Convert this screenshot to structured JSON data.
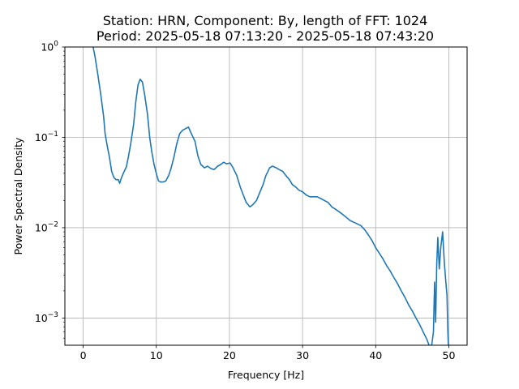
{
  "chart_data": {
    "type": "line",
    "title": "Station: HRN, Component: By, length of FFT: 1024",
    "subtitle": "Period: 2025-05-18 07:13:20 - 2025-05-18 07:43:20",
    "xlabel": "Frequency [Hz]",
    "ylabel": "Power Spectral Density",
    "xlim": [
      -2.5,
      52.5
    ],
    "ylim": [
      0.0005,
      1
    ],
    "yscale": "log",
    "grid": true,
    "x_ticks": [
      0,
      10,
      20,
      30,
      40,
      50
    ],
    "y_ticks": [
      {
        "value": 0.001,
        "base": "10",
        "exp": "−3"
      },
      {
        "value": 0.01,
        "base": "10",
        "exp": "−2"
      },
      {
        "value": 0.1,
        "base": "10",
        "exp": "−1"
      },
      {
        "value": 1,
        "base": "10",
        "exp": "0"
      }
    ],
    "series": [
      {
        "color": "#1f77b4",
        "points": [
          [
            1.3,
            1.05
          ],
          [
            1.6,
            0.8
          ],
          [
            2.0,
            0.5
          ],
          [
            2.4,
            0.3
          ],
          [
            2.8,
            0.17
          ],
          [
            3.0,
            0.11
          ],
          [
            3.3,
            0.08
          ],
          [
            3.6,
            0.06
          ],
          [
            3.9,
            0.042
          ],
          [
            4.2,
            0.036
          ],
          [
            4.5,
            0.034
          ],
          [
            4.8,
            0.034
          ],
          [
            5.0,
            0.031
          ],
          [
            5.2,
            0.035
          ],
          [
            5.5,
            0.04
          ],
          [
            5.9,
            0.047
          ],
          [
            6.2,
            0.062
          ],
          [
            6.5,
            0.085
          ],
          [
            6.9,
            0.14
          ],
          [
            7.2,
            0.25
          ],
          [
            7.5,
            0.38
          ],
          [
            7.8,
            0.44
          ],
          [
            8.1,
            0.41
          ],
          [
            8.4,
            0.3
          ],
          [
            8.8,
            0.18
          ],
          [
            9.1,
            0.1
          ],
          [
            9.4,
            0.068
          ],
          [
            9.7,
            0.05
          ],
          [
            10.0,
            0.04
          ],
          [
            10.3,
            0.033
          ],
          [
            10.6,
            0.032
          ],
          [
            10.9,
            0.032
          ],
          [
            11.3,
            0.033
          ],
          [
            11.7,
            0.038
          ],
          [
            12.0,
            0.045
          ],
          [
            12.4,
            0.06
          ],
          [
            12.8,
            0.085
          ],
          [
            13.2,
            0.11
          ],
          [
            13.6,
            0.12
          ],
          [
            14.0,
            0.125
          ],
          [
            14.4,
            0.13
          ],
          [
            14.8,
            0.11
          ],
          [
            15.3,
            0.09
          ],
          [
            15.7,
            0.062
          ],
          [
            16.1,
            0.05
          ],
          [
            16.6,
            0.046
          ],
          [
            17.0,
            0.048
          ],
          [
            17.5,
            0.045
          ],
          [
            17.9,
            0.044
          ],
          [
            18.4,
            0.048
          ],
          [
            18.8,
            0.05
          ],
          [
            19.2,
            0.053
          ],
          [
            19.6,
            0.051
          ],
          [
            20.1,
            0.052
          ],
          [
            20.5,
            0.046
          ],
          [
            21.0,
            0.038
          ],
          [
            21.5,
            0.028
          ],
          [
            21.9,
            0.023
          ],
          [
            22.3,
            0.019
          ],
          [
            22.8,
            0.017
          ],
          [
            23.2,
            0.018
          ],
          [
            23.7,
            0.02
          ],
          [
            24.1,
            0.024
          ],
          [
            24.6,
            0.03
          ],
          [
            25.0,
            0.038
          ],
          [
            25.5,
            0.046
          ],
          [
            25.9,
            0.048
          ],
          [
            26.4,
            0.046
          ],
          [
            26.8,
            0.044
          ],
          [
            27.3,
            0.042
          ],
          [
            27.7,
            0.038
          ],
          [
            28.2,
            0.034
          ],
          [
            28.6,
            0.03
          ],
          [
            29.1,
            0.028
          ],
          [
            29.5,
            0.026
          ],
          [
            30.0,
            0.025
          ],
          [
            30.5,
            0.023
          ],
          [
            31.0,
            0.022
          ],
          [
            31.5,
            0.022
          ],
          [
            32.0,
            0.022
          ],
          [
            32.5,
            0.021
          ],
          [
            33.0,
            0.02
          ],
          [
            33.5,
            0.019
          ],
          [
            34.0,
            0.017
          ],
          [
            34.5,
            0.016
          ],
          [
            35.0,
            0.015
          ],
          [
            35.5,
            0.014
          ],
          [
            36.0,
            0.013
          ],
          [
            36.5,
            0.012
          ],
          [
            37.0,
            0.0115
          ],
          [
            37.5,
            0.011
          ],
          [
            38.0,
            0.0105
          ],
          [
            38.5,
            0.0095
          ],
          [
            39.0,
            0.0083
          ],
          [
            39.5,
            0.0072
          ],
          [
            40.0,
            0.006
          ],
          [
            40.5,
            0.0052
          ],
          [
            41.0,
            0.0045
          ],
          [
            41.5,
            0.0038
          ],
          [
            42.0,
            0.0033
          ],
          [
            42.5,
            0.0028
          ],
          [
            43.0,
            0.0024
          ],
          [
            43.5,
            0.002
          ],
          [
            44.0,
            0.0017
          ],
          [
            44.5,
            0.0014
          ],
          [
            45.0,
            0.0012
          ],
          [
            45.5,
            0.001
          ],
          [
            46.0,
            0.00085
          ],
          [
            46.5,
            0.0007
          ],
          [
            47.0,
            0.00058
          ],
          [
            47.3,
            0.0005
          ],
          [
            47.6,
            0.00046
          ],
          [
            47.9,
            0.0007
          ],
          [
            48.05,
            0.0025
          ],
          [
            48.2,
            0.0009
          ],
          [
            48.35,
            0.004
          ],
          [
            48.5,
            0.0078
          ],
          [
            48.7,
            0.0035
          ],
          [
            48.9,
            0.006
          ],
          [
            49.15,
            0.009
          ],
          [
            49.4,
            0.004
          ],
          [
            49.6,
            0.0025
          ],
          [
            49.75,
            0.0018
          ],
          [
            49.85,
            0.0008
          ],
          [
            49.95,
            0.00045
          ]
        ]
      }
    ]
  }
}
